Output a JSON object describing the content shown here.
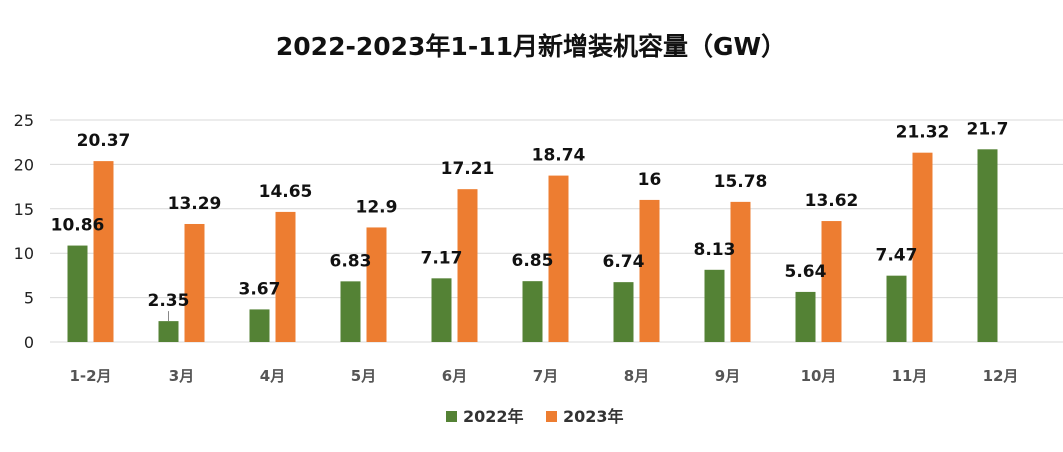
{
  "chart_data": {
    "type": "bar",
    "title": "2022-2023年1-11月新增装机容量（GW）",
    "categories": [
      "1-2月",
      "3月",
      "4月",
      "5月",
      "6月",
      "7月",
      "8月",
      "9月",
      "10月",
      "11月",
      "12月"
    ],
    "series": [
      {
        "name": "2022年",
        "color": "#548235",
        "values": [
          10.86,
          2.35,
          3.67,
          6.83,
          7.17,
          6.85,
          6.74,
          8.13,
          5.64,
          7.47,
          21.7
        ]
      },
      {
        "name": "2023年",
        "color": "#ED7D31",
        "values": [
          20.37,
          13.29,
          14.65,
          12.9,
          17.21,
          18.74,
          16,
          15.78,
          13.62,
          21.32,
          null
        ]
      }
    ],
    "y_ticks": [
      "0",
      "5",
      "10",
      "15",
      "20",
      "25"
    ],
    "ylim": [
      0,
      25
    ],
    "grid": true,
    "legend_position": "bottom",
    "xlabel": "",
    "ylabel": ""
  }
}
